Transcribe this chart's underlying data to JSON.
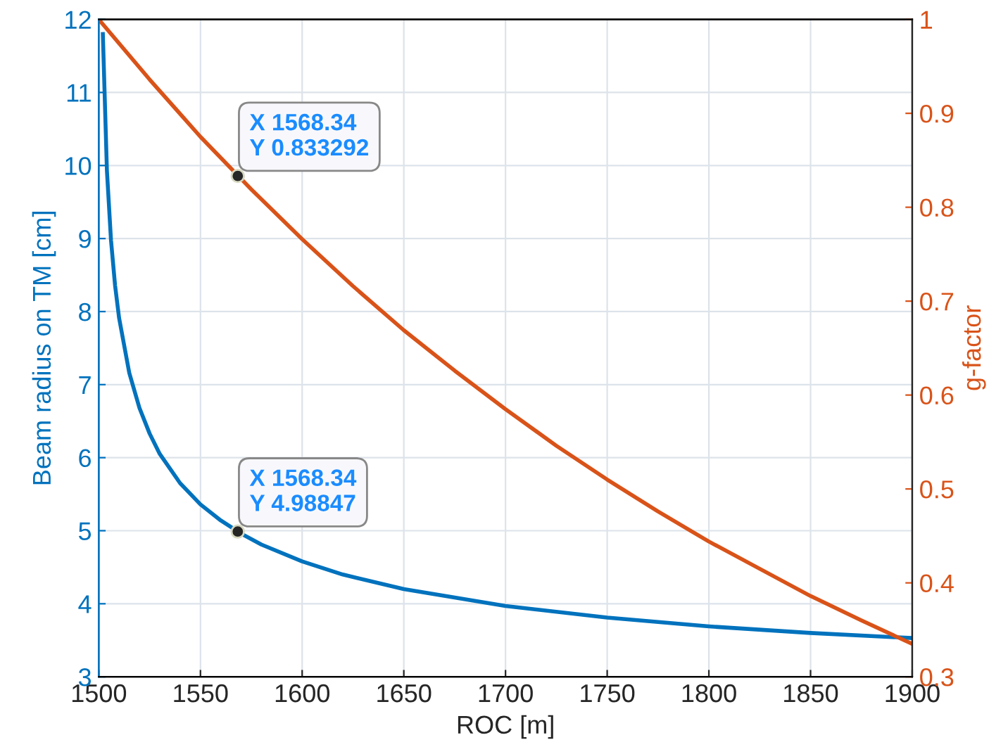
{
  "chart_data": {
    "type": "line",
    "xlabel": "ROC [m]",
    "ylabel": "Beam radius on TM [cm]",
    "y2label": "g-factor",
    "series": [
      {
        "color": "#0072bd",
        "x": [
          1502,
          1504,
          1506,
          1508,
          1510,
          1515,
          1520,
          1525,
          1530,
          1540,
          1550,
          1560,
          1570,
          1580,
          1600,
          1620,
          1650,
          1700,
          1750,
          1800,
          1850,
          1900
        ],
        "values": [
          11.8,
          9.93,
          8.98,
          8.36,
          7.91,
          7.16,
          6.68,
          6.33,
          6.05,
          5.65,
          5.36,
          5.14,
          4.96,
          4.81,
          4.58,
          4.4,
          4.2,
          3.97,
          3.81,
          3.69,
          3.6,
          3.53
        ]
      },
      {
        "color": "#d95319",
        "axis": "y2",
        "x": [
          1500,
          1525,
          1550,
          1575,
          1600,
          1625,
          1650,
          1675,
          1700,
          1725,
          1750,
          1775,
          1800,
          1825,
          1850,
          1875,
          1900
        ],
        "values": [
          1.0,
          0.936,
          0.875,
          0.819,
          0.766,
          0.716,
          0.669,
          0.626,
          0.585,
          0.546,
          0.51,
          0.476,
          0.444,
          0.415,
          0.386,
          0.36,
          0.335
        ]
      },
      {
        "type": "scatter",
        "color": "#262626",
        "axis": "y2",
        "x": [
          1568.34
        ],
        "values": [
          0.833292
        ]
      },
      {
        "type": "scatter",
        "color": "#262626",
        "x": [
          1568.34
        ],
        "values": [
          4.98847
        ]
      }
    ],
    "xlim": [
      1500,
      1900
    ],
    "xticks": [
      1500,
      1550,
      1600,
      1650,
      1700,
      1750,
      1800,
      1850,
      1900
    ],
    "ylim": [
      3,
      12
    ],
    "yticks": [
      3,
      4,
      5,
      6,
      7,
      8,
      9,
      10,
      11,
      12
    ],
    "y2lim": [
      0.3,
      1
    ],
    "y2ticks": [
      0.3,
      0.4,
      0.5,
      0.6,
      0.7,
      0.8,
      0.9,
      1
    ],
    "grid": true,
    "legend": false,
    "annotations": [
      "X 1568.34\nY 0.833292",
      "X 1568.34\nY 4.98847"
    ]
  }
}
